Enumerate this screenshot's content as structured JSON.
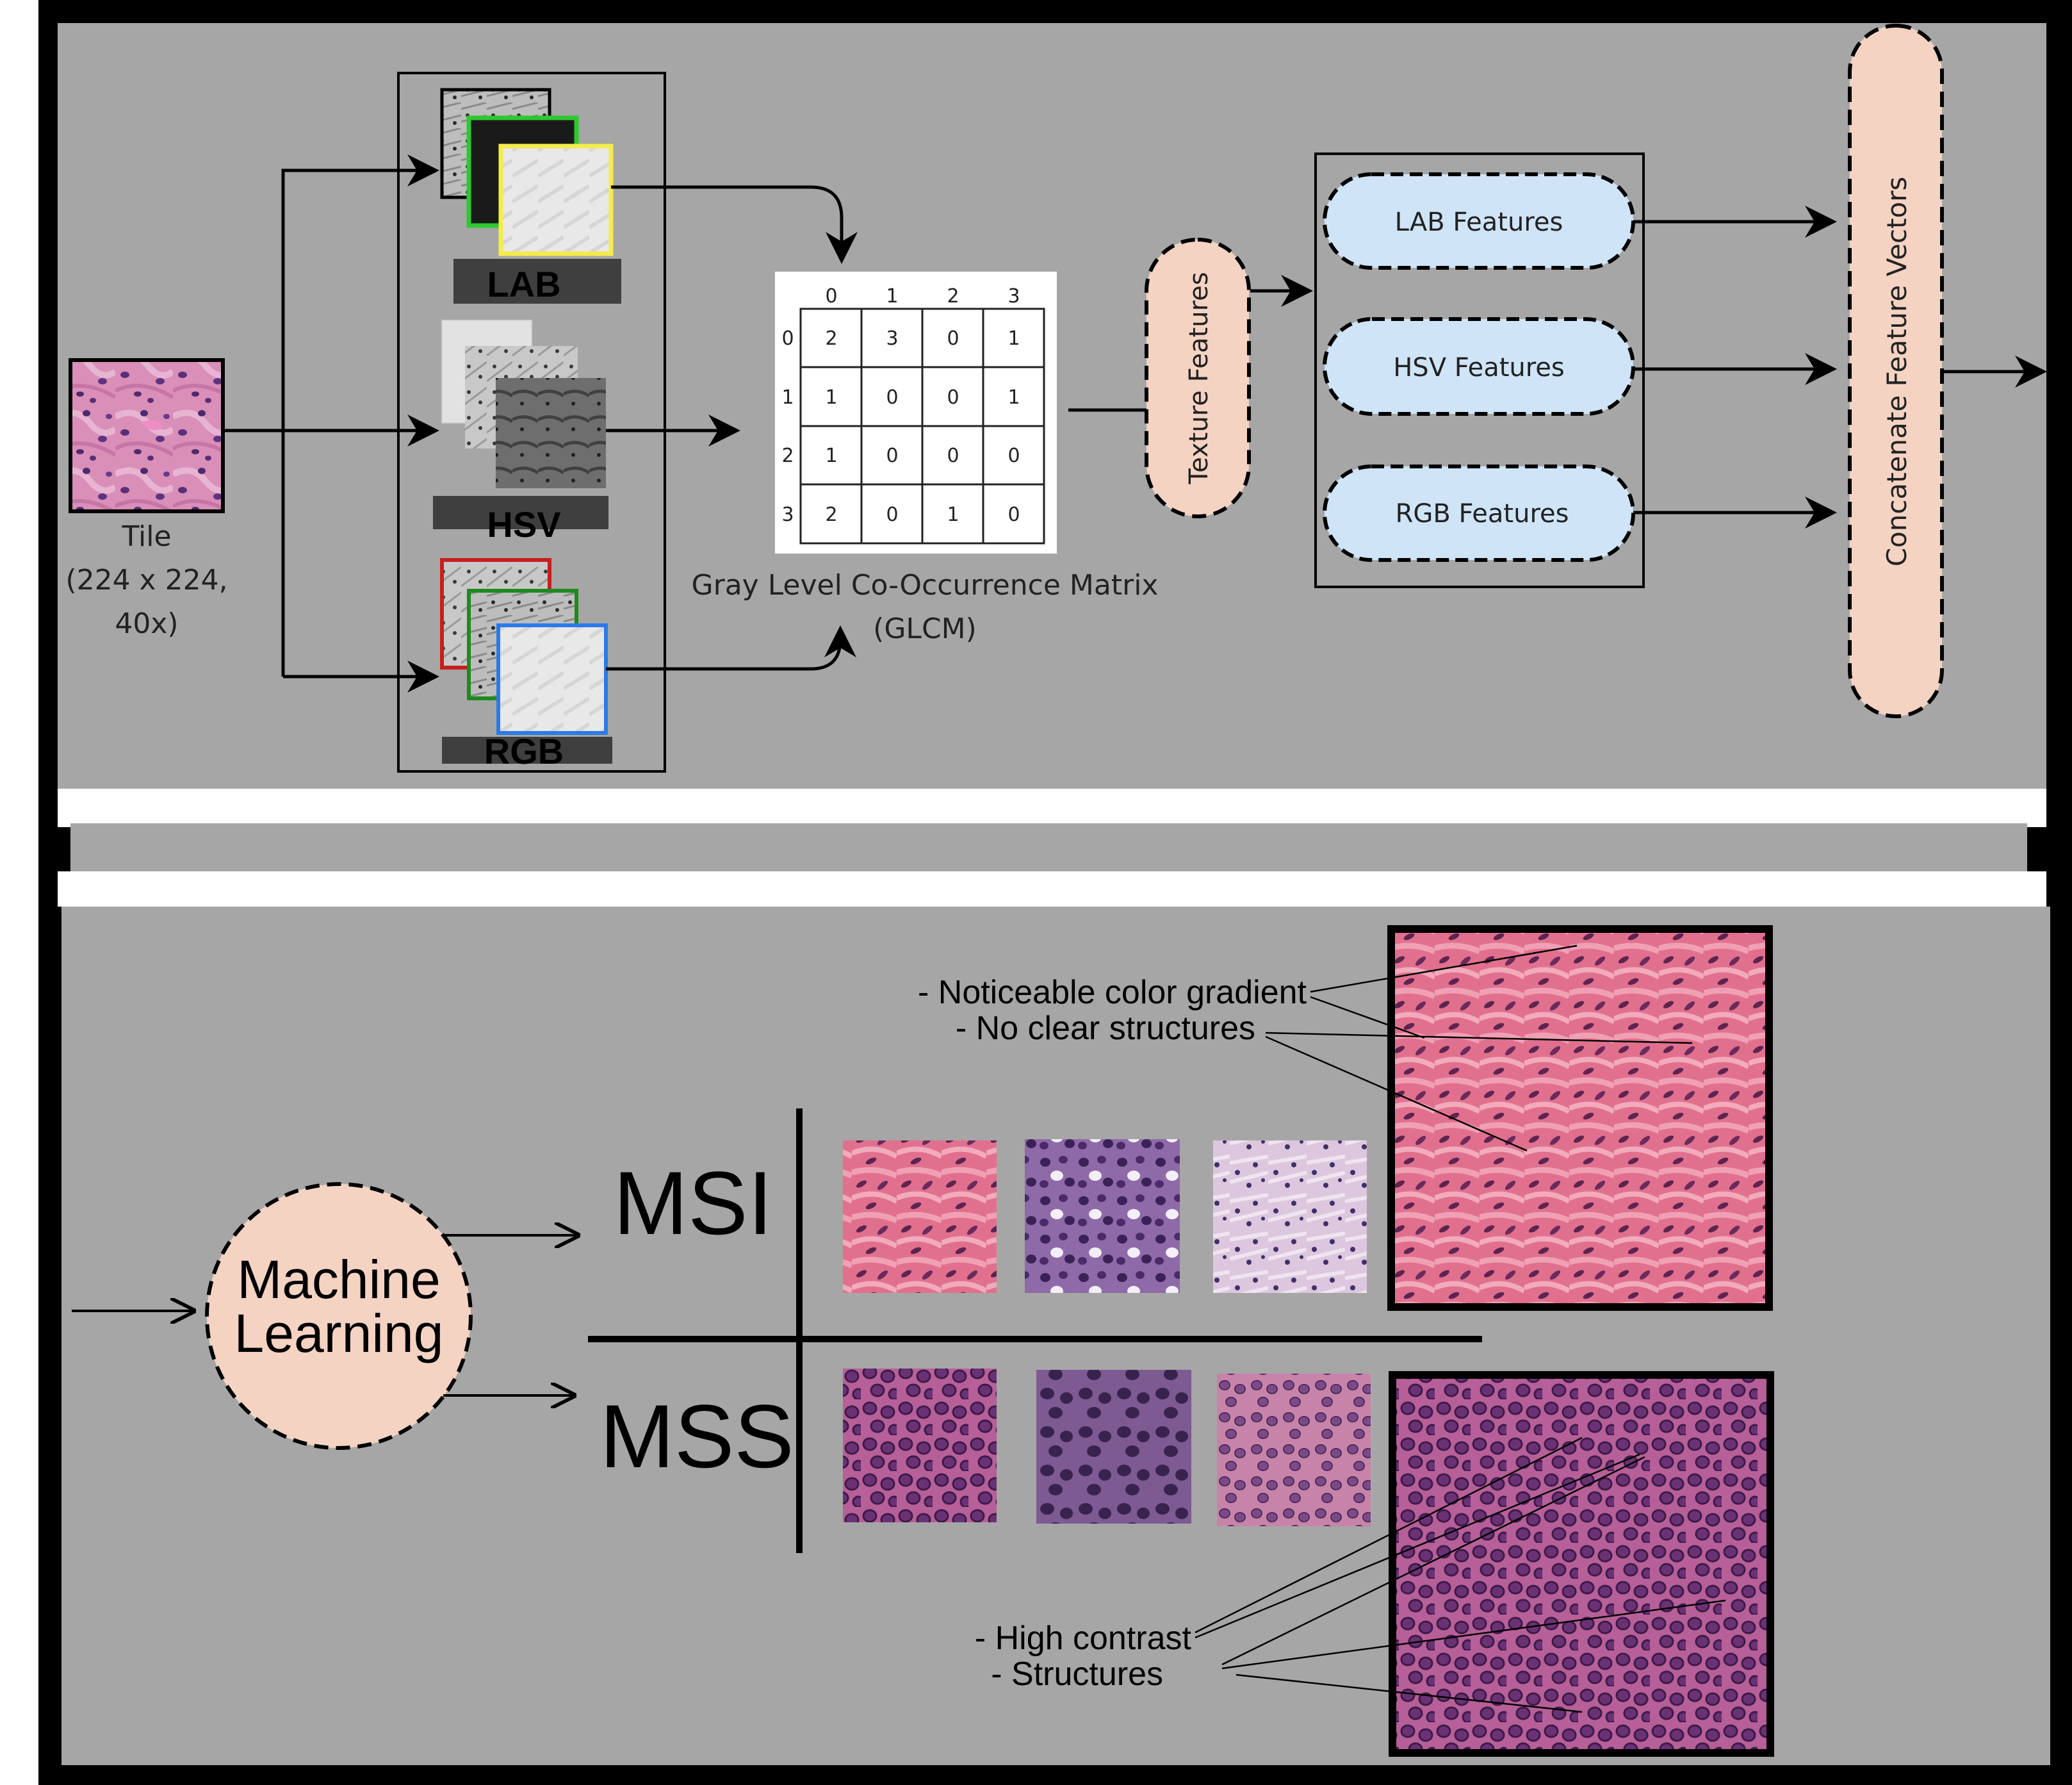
{
  "top": {
    "tile": {
      "label_line1": "Tile",
      "label_line2": "(224 x 224,",
      "label_line3": "40x)"
    },
    "color_spaces": [
      {
        "label": "LAB"
      },
      {
        "label": "HSV"
      },
      {
        "label": "RGB"
      }
    ],
    "glcm": {
      "col_headers": [
        "0",
        "1",
        "2",
        "3"
      ],
      "row_headers": [
        "0",
        "1",
        "2",
        "3"
      ],
      "cells": [
        [
          "2",
          "3",
          "0",
          "1"
        ],
        [
          "1",
          "0",
          "0",
          "1"
        ],
        [
          "1",
          "0",
          "0",
          "0"
        ],
        [
          "2",
          "0",
          "1",
          "0"
        ]
      ],
      "caption_line1": "Gray Level Co-Occurrence Matrix",
      "caption_line2": "(GLCM)"
    },
    "texture_features": "Texture Features",
    "features": [
      {
        "label": "LAB Features"
      },
      {
        "label": "HSV Features"
      },
      {
        "label": "RGB Features"
      }
    ],
    "concatenate": "Concatenate Feature Vectors",
    "colors": {
      "panel_bg": "#a6a6a6",
      "peach": "#f4d3c3",
      "light_blue": "#cfe4f7",
      "lab_green": "#2ec82e",
      "lab_yellow": "#f4ec4a",
      "rgb_red": "#c81e1e",
      "rgb_green": "#1e8a1e",
      "rgb_blue": "#2a7be8"
    }
  },
  "bottom": {
    "machine_learning_line1": "Machine",
    "machine_learning_line2": "Learning",
    "msi": "MSI",
    "mss": "MSS",
    "msi_notes": [
      "- Noticeable color gradient",
      "- No clear structures"
    ],
    "mss_notes": [
      "- High contrast",
      "- Structures"
    ]
  }
}
